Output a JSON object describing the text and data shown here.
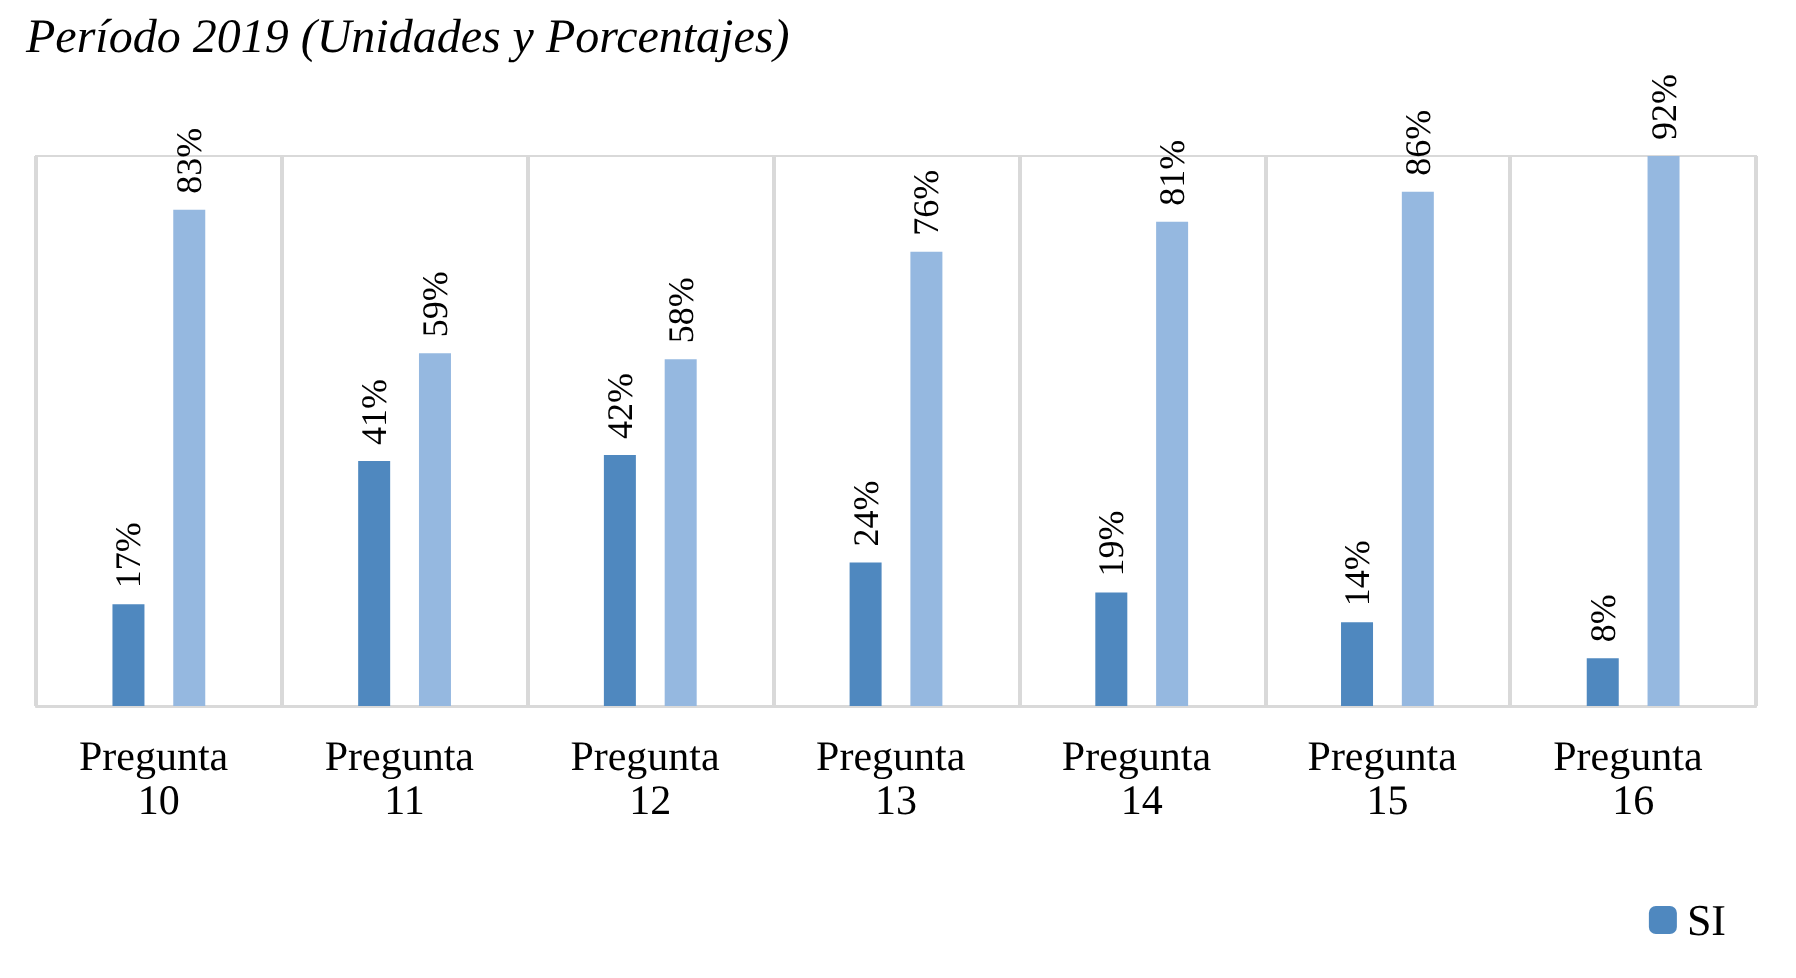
{
  "chart_data": {
    "type": "bar",
    "title": "Período 2019 (Unidades y Porcentajes)",
    "categories": [
      "Pregunta 10",
      "Pregunta 11",
      "Pregunta 12",
      "Pregunta 13",
      "Pregunta 14",
      "Pregunta 15",
      "Pregunta 16"
    ],
    "series": [
      {
        "name": "SI",
        "color": "#4f88bf",
        "values": [
          17,
          41,
          42,
          24,
          19,
          14,
          8
        ],
        "value_labels": [
          "17%",
          "41%",
          "42%",
          "24%",
          "19%",
          "14%",
          "8%"
        ]
      },
      {
        "color": "#95b8e0",
        "values": [
          83,
          59,
          58,
          76,
          81,
          86,
          92
        ],
        "value_labels": [
          "83%",
          "59%",
          "58%",
          "76%",
          "81%",
          "86%",
          "92%"
        ]
      }
    ],
    "grid": "x",
    "legend": "bottom right"
  }
}
